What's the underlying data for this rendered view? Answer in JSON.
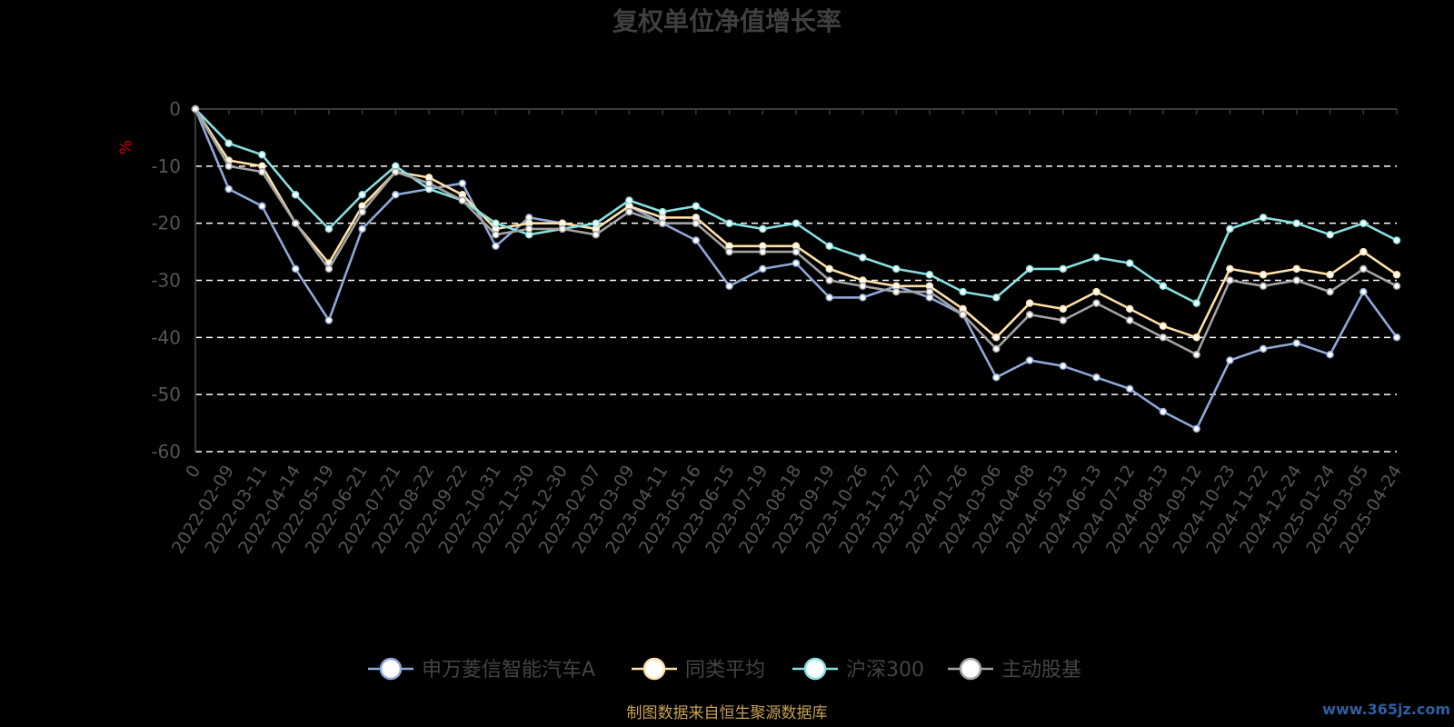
{
  "chart_data": {
    "type": "line",
    "title": "复权单位净值增长率",
    "ylabel": "%",
    "ylim": [
      -60,
      0
    ],
    "yticks": [
      0,
      -10,
      -20,
      -30,
      -40,
      -50,
      -60
    ],
    "grid": true,
    "legend_position": "bottom",
    "x_tick_labels": [
      "0",
      "2022-02-09",
      "2022-03-11",
      "2022-04-14",
      "2022-05-19",
      "2022-06-21",
      "2022-07-21",
      "2022-08-22",
      "2022-09-22",
      "2022-10-31",
      "2022-11-30",
      "2022-12-30",
      "2023-02-07",
      "2023-03-09",
      "2023-04-11",
      "2023-05-16",
      "2023-06-15",
      "2023-07-19",
      "2023-08-18",
      "2023-09-19",
      "2023-10-26",
      "2023-11-27",
      "2023-12-27",
      "2024-01-26",
      "2024-03-06",
      "2024-04-08",
      "2024-05-13",
      "2024-06-13",
      "2024-07-12",
      "2024-08-13",
      "2024-09-12",
      "2024-10-23",
      "2024-11-22",
      "2024-12-24",
      "2025-01-24",
      "2025-03-05",
      "2025-04-24"
    ],
    "series": [
      {
        "name": "申万菱信智能汽车A",
        "color": "#8fa8d8",
        "values": [
          0,
          -14,
          -17,
          -28,
          -37,
          -21,
          -15,
          -14,
          -13,
          -24,
          -19,
          -20,
          -21,
          -17,
          -20,
          -23,
          -31,
          -28,
          -27,
          -33,
          -33,
          -31,
          -33,
          -36,
          -47,
          -44,
          -45,
          -47,
          -49,
          -53,
          -56,
          -44,
          -42,
          -41,
          -43,
          -32,
          -40
        ]
      },
      {
        "name": "同类平均",
        "color": "#ffe0a6",
        "values": [
          0,
          -9,
          -10,
          -20,
          -27,
          -17,
          -11,
          -12,
          -15,
          -21,
          -20,
          -20,
          -21,
          -17,
          -19,
          -19,
          -24,
          -24,
          -24,
          -28,
          -30,
          -31,
          -31,
          -35,
          -40,
          -34,
          -35,
          -32,
          -35,
          -38,
          -40,
          -28,
          -29,
          -28,
          -29,
          -25,
          -29
        ]
      },
      {
        "name": "沪深300",
        "color": "#87e0e0",
        "values": [
          0,
          -6,
          -8,
          -15,
          -21,
          -15,
          -10,
          -14,
          -16,
          -20,
          -22,
          -21,
          -20,
          -16,
          -18,
          -17,
          -20,
          -21,
          -20,
          -24,
          -26,
          -28,
          -29,
          -32,
          -33,
          -28,
          -28,
          -26,
          -27,
          -31,
          -34,
          -21,
          -19,
          -20,
          -22,
          -20,
          -23
        ]
      },
      {
        "name": "主动股基",
        "color": "#a3a3a3",
        "values": [
          0,
          -10,
          -11,
          -20,
          -28,
          -18,
          -11,
          -13,
          -16,
          -22,
          -21,
          -21,
          -22,
          -18,
          -20,
          -20,
          -25,
          -25,
          -25,
          -30,
          -31,
          -32,
          -32,
          -36,
          -42,
          -36,
          -37,
          -34,
          -37,
          -40,
          -43,
          -30,
          -31,
          -30,
          -32,
          -28,
          -31
        ]
      }
    ],
    "source_note": "制图数据来自恒生聚源数据库",
    "watermark": "www.365jz.com"
  }
}
